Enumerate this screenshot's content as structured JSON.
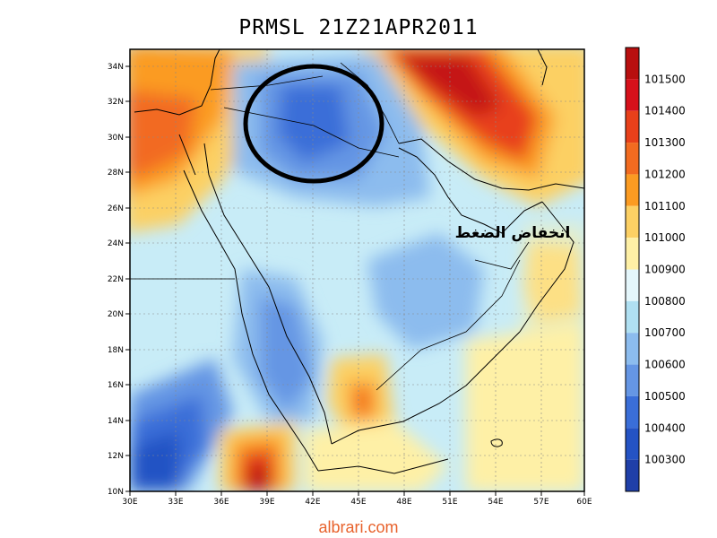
{
  "title": "PRMSL 21Z21APR2011",
  "annotation": "انخفاض الضغط",
  "footer": "albrari.com",
  "map": {
    "lon_labels": [
      "30E",
      "33E",
      "36E",
      "39E",
      "42E",
      "45E",
      "48E",
      "51E",
      "54E",
      "57E",
      "60E"
    ],
    "lat_labels": [
      "34N",
      "32N",
      "30N",
      "28N",
      "26N",
      "24N",
      "22N",
      "20N",
      "18N",
      "16N",
      "14N",
      "12N",
      "10N"
    ],
    "lon_range": [
      30,
      60
    ],
    "lat_range": [
      10,
      35
    ],
    "grid": "dotted"
  },
  "colorbar": {
    "levels": [
      "101500",
      "101400",
      "101300",
      "101200",
      "101100",
      "101000",
      "100900",
      "100800",
      "100700",
      "100600",
      "100500",
      "100400",
      "100300"
    ],
    "colors": [
      "#b80f0f",
      "#d6101a",
      "#e8401a",
      "#f26b20",
      "#fb9b22",
      "#fcd064",
      "#fef0a6",
      "#e4f6fb",
      "#b0e0f2",
      "#8cbcee",
      "#6596e4",
      "#3a6ed8",
      "#2453c4",
      "#1f3fa8"
    ]
  },
  "colors": {
    "background": "#c8ecf7",
    "circle": "#000000",
    "footer": "#e8622c"
  }
}
